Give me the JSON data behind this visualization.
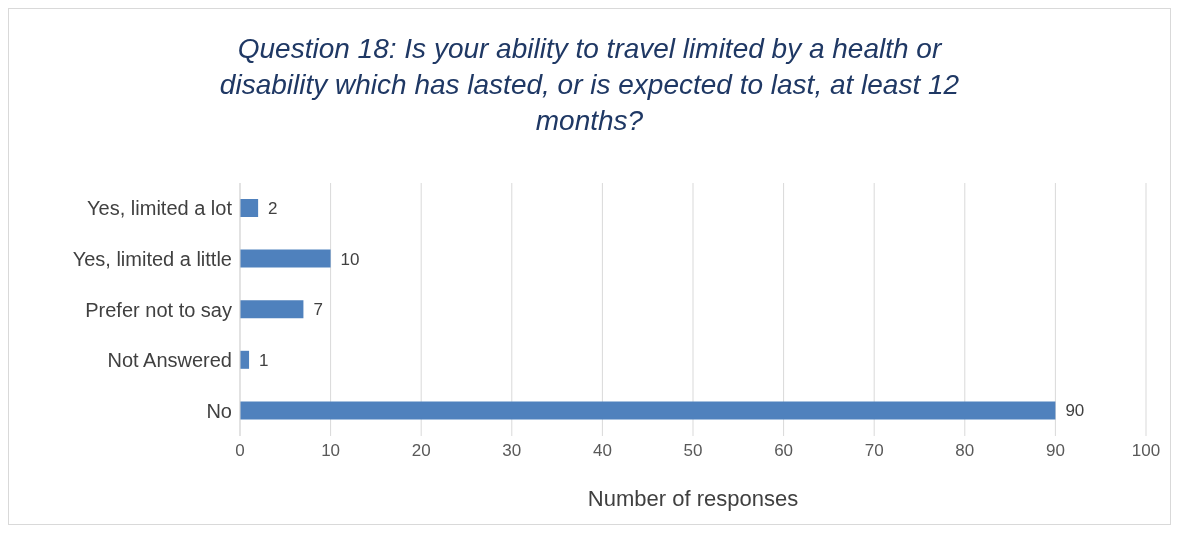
{
  "chart_data": {
    "type": "bar",
    "orientation": "horizontal",
    "title": "Question 18: Is your ability to travel limited by a health or disability which has lasted, or is expected to last, at least 12 months?",
    "categories": [
      "Yes, limited a lot",
      "Yes, limited a little",
      "Prefer not to say",
      "Not Answered",
      "No"
    ],
    "values": [
      2,
      10,
      7,
      1,
      90
    ],
    "color": "#4f81bd",
    "xlabel": "Number of responses",
    "xlim": [
      0,
      100
    ],
    "xticks": [
      0,
      10,
      20,
      30,
      40,
      50,
      60,
      70,
      80,
      90,
      100
    ],
    "grid": "x",
    "data_labels": true
  }
}
